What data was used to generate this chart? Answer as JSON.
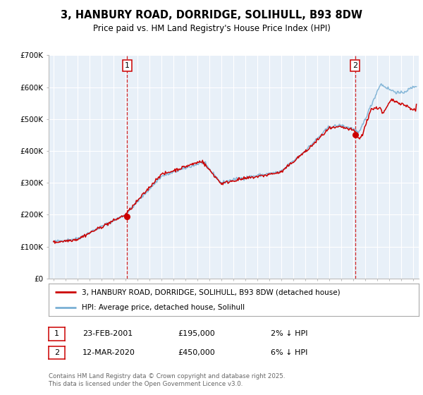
{
  "title": "3, HANBURY ROAD, DORRIDGE, SOLIHULL, B93 8DW",
  "subtitle": "Price paid vs. HM Land Registry's House Price Index (HPI)",
  "legend_line1": "3, HANBURY ROAD, DORRIDGE, SOLIHULL, B93 8DW (detached house)",
  "legend_line2": "HPI: Average price, detached house, Solihull",
  "ann1_date": "23-FEB-2001",
  "ann1_price": "£195,000",
  "ann1_pct": "2% ↓ HPI",
  "ann1_x": 2001.14,
  "ann1_y": 195000,
  "ann2_date": "12-MAR-2020",
  "ann2_price": "£450,000",
  "ann2_pct": "6% ↓ HPI",
  "ann2_x": 2020.19,
  "ann2_y": 450000,
  "footer": "Contains HM Land Registry data © Crown copyright and database right 2025.\nThis data is licensed under the Open Government Licence v3.0.",
  "hpi_color": "#7ab0d4",
  "price_color": "#cc0000",
  "vline_color": "#cc0000",
  "bg_color": "#ffffff",
  "plot_bg": "#e8f0f8",
  "grid_color": "#ffffff",
  "ylim": [
    0,
    700000
  ],
  "xlim": [
    1994.6,
    2025.5
  ],
  "yticks": [
    0,
    100000,
    200000,
    300000,
    400000,
    500000,
    600000,
    700000
  ],
  "ytick_labels": [
    "£0",
    "£100K",
    "£200K",
    "£300K",
    "£400K",
    "£500K",
    "£600K",
    "£700K"
  ]
}
